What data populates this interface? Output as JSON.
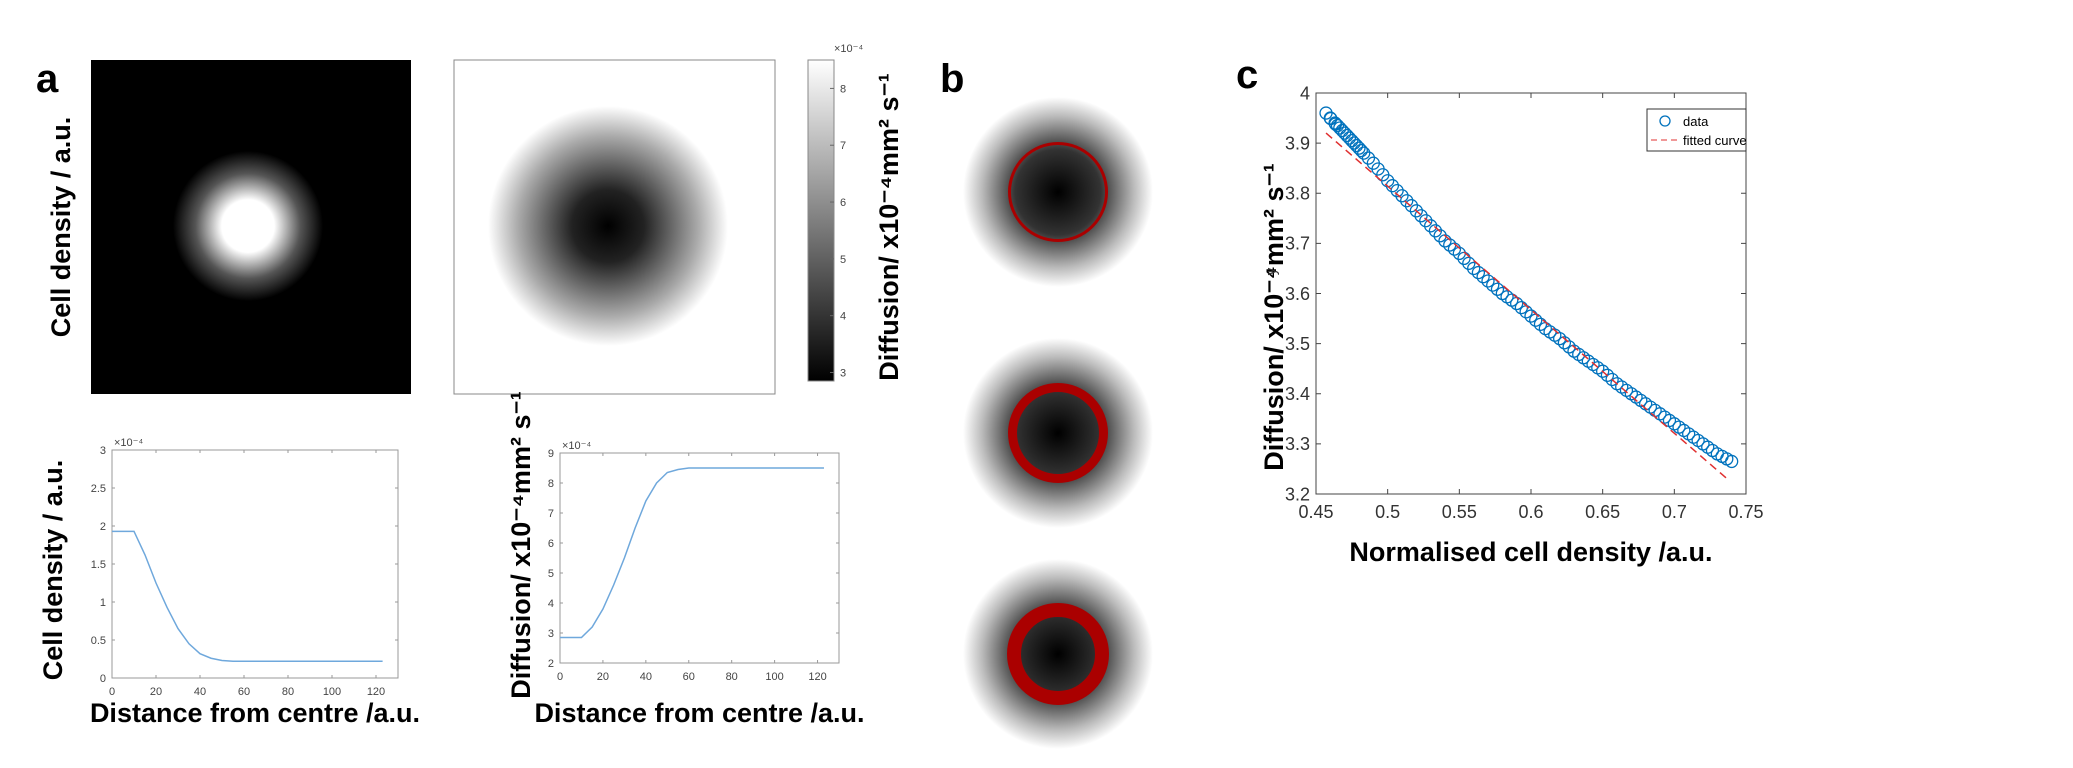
{
  "panels": {
    "a": "a",
    "b": "b",
    "c": "c"
  },
  "panel_a": {
    "image_ylabel": "Cell density / a.u.",
    "colorbar": {
      "label": "Diffusion/ x10⁻⁴mm² s⁻¹",
      "exponent": "×10⁻⁴",
      "ticks": [
        "3",
        "4",
        "5",
        "6",
        "7",
        "8"
      ],
      "range": [
        2.85,
        8.5
      ],
      "colormap": "gray"
    }
  },
  "chart_data": [
    {
      "type": "line",
      "xlabel": "Distance from centre /a.u.",
      "ylabel": "Cell density / a.u.",
      "y_exponent": "×10⁻⁴",
      "xlim": [
        0,
        130
      ],
      "ylim": [
        0,
        3
      ],
      "xticks": [
        "0",
        "20",
        "40",
        "60",
        "80",
        "100",
        "120"
      ],
      "yticks": [
        "0",
        "0.5",
        "1",
        "1.5",
        "2",
        "2.5",
        "3"
      ],
      "x": [
        0,
        10,
        15,
        20,
        25,
        30,
        35,
        40,
        45,
        50,
        55,
        60,
        123
      ],
      "y": [
        1.93,
        1.93,
        1.62,
        1.25,
        0.93,
        0.65,
        0.45,
        0.32,
        0.26,
        0.23,
        0.22,
        0.22,
        0.22
      ],
      "color": "#6fa8dc"
    },
    {
      "type": "line",
      "xlabel": "Distance from centre /a.u.",
      "ylabel": "Diffusion/ x10⁻⁴mm² s⁻¹",
      "y_exponent": "×10⁻⁴",
      "xlim": [
        0,
        130
      ],
      "ylim": [
        2,
        9
      ],
      "xticks": [
        "0",
        "20",
        "40",
        "60",
        "80",
        "100",
        "120"
      ],
      "yticks": [
        "2",
        "3",
        "4",
        "5",
        "6",
        "7",
        "8",
        "9"
      ],
      "x": [
        0,
        10,
        15,
        20,
        25,
        30,
        35,
        40,
        45,
        50,
        55,
        60,
        123
      ],
      "y": [
        2.85,
        2.85,
        3.2,
        3.8,
        4.6,
        5.5,
        6.5,
        7.4,
        8.0,
        8.35,
        8.45,
        8.5,
        8.5
      ],
      "color": "#6fa8dc"
    },
    {
      "type": "scatter",
      "xlabel": "Normalised cell density /a.u.",
      "ylabel": "Diffusion/ x10⁻⁴mm² s⁻¹",
      "axis_ylabel": "y",
      "xlim": [
        0.45,
        0.75
      ],
      "ylim": [
        3.2,
        4.0
      ],
      "xticks": [
        "0.45",
        "0.5",
        "0.55",
        "0.6",
        "0.65",
        "0.7",
        "0.75"
      ],
      "yticks": [
        "3.2",
        "3.3",
        "3.4",
        "3.5",
        "3.6",
        "3.7",
        "3.8",
        "3.9",
        "4"
      ],
      "legend": {
        "position": "top-right",
        "entries": [
          "data",
          "fitted curve"
        ]
      },
      "series": [
        {
          "name": "data",
          "marker": "open-circle",
          "color": "#0072bd",
          "x": [
            0.457,
            0.46,
            0.465,
            0.47,
            0.475,
            0.48,
            0.49,
            0.5,
            0.51,
            0.52,
            0.53,
            0.54,
            0.55,
            0.56,
            0.57,
            0.58,
            0.59,
            0.6,
            0.61,
            0.62,
            0.63,
            0.64,
            0.65,
            0.66,
            0.67,
            0.68,
            0.69,
            0.7,
            0.71,
            0.72,
            0.73,
            0.74
          ],
          "y": [
            3.96,
            3.95,
            3.935,
            3.92,
            3.905,
            3.89,
            3.86,
            3.825,
            3.795,
            3.765,
            3.735,
            3.705,
            3.68,
            3.65,
            3.625,
            3.6,
            3.58,
            3.555,
            3.53,
            3.51,
            3.485,
            3.465,
            3.445,
            3.42,
            3.4,
            3.38,
            3.36,
            3.34,
            3.32,
            3.3,
            3.28,
            3.265
          ]
        },
        {
          "name": "fitted curve",
          "line": "dashed",
          "color": "#e03030",
          "x": [
            0.457,
            0.737
          ],
          "y": [
            3.92,
            3.23
          ]
        }
      ]
    }
  ],
  "panel_b": {
    "ring_color": "#aa0000",
    "rings": 3
  }
}
